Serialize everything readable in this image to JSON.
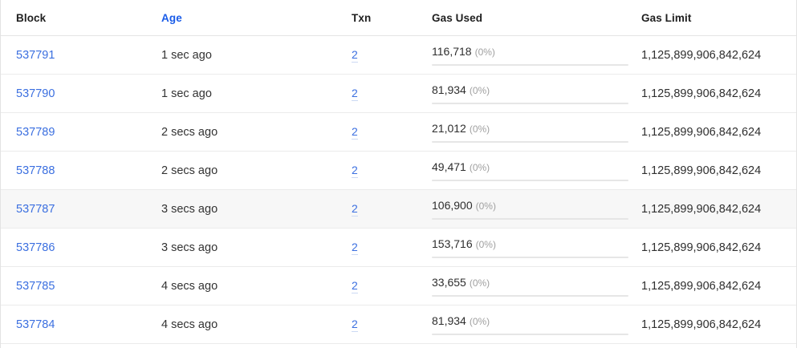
{
  "colors": {
    "link_blue": "#3b6fe0",
    "age_header_blue": "#1a5ce8",
    "row_highlight": "#f7f7f7",
    "percent_gray": "#a0a0a0",
    "row_border": "#ebebeb"
  },
  "table": {
    "columns": [
      {
        "key": "block",
        "label": "Block"
      },
      {
        "key": "age",
        "label": "Age"
      },
      {
        "key": "txn",
        "label": "Txn"
      },
      {
        "key": "gas_used",
        "label": "Gas Used"
      },
      {
        "key": "gas_limit",
        "label": "Gas Limit"
      }
    ],
    "rows": [
      {
        "block": "537791",
        "age": "1 sec ago",
        "txn": "2",
        "gas_used": "116,718",
        "gas_used_pct": "(0%)",
        "gas_used_pct_value": 0,
        "gas_limit": "1,125,899,906,842,624",
        "highlighted": false
      },
      {
        "block": "537790",
        "age": "1 sec ago",
        "txn": "2",
        "gas_used": "81,934",
        "gas_used_pct": "(0%)",
        "gas_used_pct_value": 0,
        "gas_limit": "1,125,899,906,842,624",
        "highlighted": false
      },
      {
        "block": "537789",
        "age": "2 secs ago",
        "txn": "2",
        "gas_used": "21,012",
        "gas_used_pct": "(0%)",
        "gas_used_pct_value": 0,
        "gas_limit": "1,125,899,906,842,624",
        "highlighted": false
      },
      {
        "block": "537788",
        "age": "2 secs ago",
        "txn": "2",
        "gas_used": "49,471",
        "gas_used_pct": "(0%)",
        "gas_used_pct_value": 0,
        "gas_limit": "1,125,899,906,842,624",
        "highlighted": false
      },
      {
        "block": "537787",
        "age": "3 secs ago",
        "txn": "2",
        "gas_used": "106,900",
        "gas_used_pct": "(0%)",
        "gas_used_pct_value": 0,
        "gas_limit": "1,125,899,906,842,624",
        "highlighted": true
      },
      {
        "block": "537786",
        "age": "3 secs ago",
        "txn": "2",
        "gas_used": "153,716",
        "gas_used_pct": "(0%)",
        "gas_used_pct_value": 0,
        "gas_limit": "1,125,899,906,842,624",
        "highlighted": false
      },
      {
        "block": "537785",
        "age": "4 secs ago",
        "txn": "2",
        "gas_used": "33,655",
        "gas_used_pct": "(0%)",
        "gas_used_pct_value": 0,
        "gas_limit": "1,125,899,906,842,624",
        "highlighted": false
      },
      {
        "block": "537784",
        "age": "4 secs ago",
        "txn": "2",
        "gas_used": "81,934",
        "gas_used_pct": "(0%)",
        "gas_used_pct_value": 0,
        "gas_limit": "1,125,899,906,842,624",
        "highlighted": false
      }
    ]
  }
}
